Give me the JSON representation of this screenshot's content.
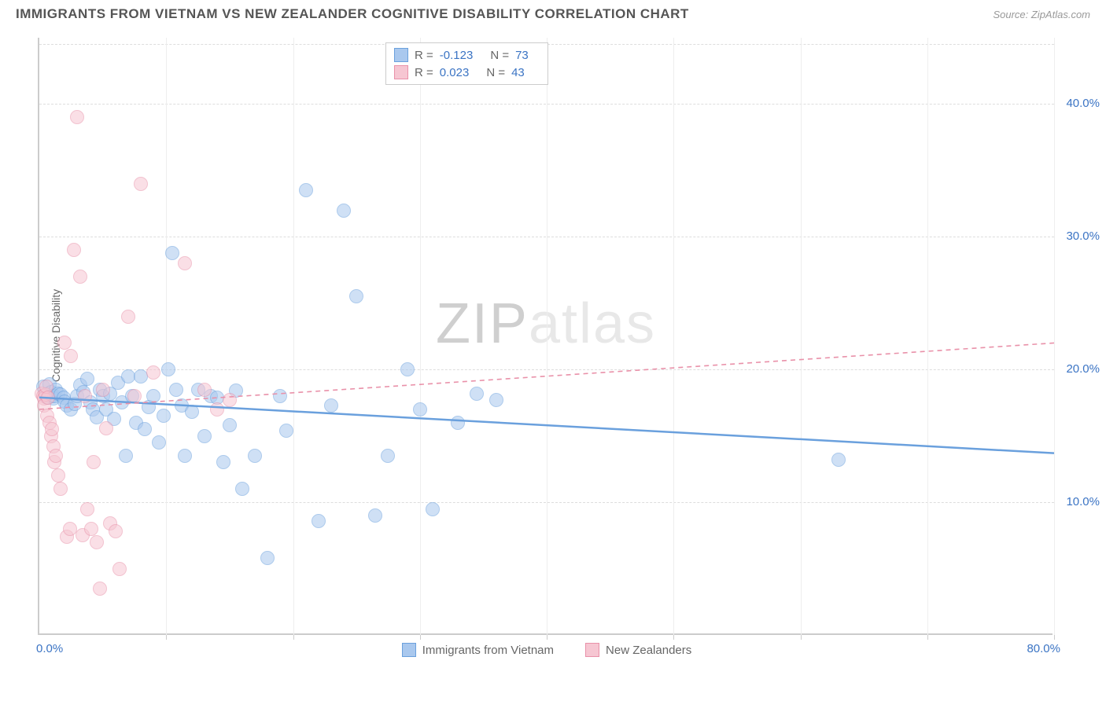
{
  "header": {
    "title": "IMMIGRANTS FROM VIETNAM VS NEW ZEALANDER COGNITIVE DISABILITY CORRELATION CHART",
    "source": "Source: ZipAtlas.com"
  },
  "chart": {
    "type": "scatter",
    "ylabel": "Cognitive Disability",
    "background_color": "#ffffff",
    "grid_color": "#dddddd",
    "axis_color": "#cccccc",
    "tick_label_color": "#3b74c4",
    "axis_label_color": "#666666",
    "xlim": [
      0,
      80
    ],
    "ylim": [
      0,
      45
    ],
    "ytick_step": 10,
    "xtick_step": 10,
    "yticks": [
      {
        "value": 10,
        "label": "10.0%"
      },
      {
        "value": 20,
        "label": "20.0%"
      },
      {
        "value": 30,
        "label": "30.0%"
      },
      {
        "value": 40,
        "label": "40.0%"
      }
    ],
    "xticks_left": {
      "value": 0,
      "label": "0.0%"
    },
    "xticks_right": {
      "value": 80,
      "label": "80.0%"
    },
    "xtick_positions": [
      10,
      20,
      30,
      40,
      50,
      60,
      70,
      80
    ],
    "point_radius": 9,
    "point_opacity": 0.55,
    "watermark": {
      "part1": "ZIP",
      "part2": "atlas"
    },
    "series": [
      {
        "name": "Immigrants from Vietnam",
        "color_fill": "#a9c8ee",
        "color_stroke": "#6aa0dd",
        "R": "-0.123",
        "N": "73",
        "points": [
          [
            0.3,
            18.7
          ],
          [
            0.5,
            18.0
          ],
          [
            0.6,
            17.9
          ],
          [
            0.7,
            18.2
          ],
          [
            0.8,
            18.9
          ],
          [
            0.9,
            18.3
          ],
          [
            1.0,
            18.0
          ],
          [
            1.1,
            17.8
          ],
          [
            1.2,
            18.0
          ],
          [
            1.3,
            18.5
          ],
          [
            1.5,
            18.2
          ],
          [
            1.7,
            18.1
          ],
          [
            1.9,
            17.9
          ],
          [
            2.0,
            17.6
          ],
          [
            2.2,
            17.3
          ],
          [
            2.5,
            17.0
          ],
          [
            2.8,
            17.4
          ],
          [
            3.0,
            18.0
          ],
          [
            3.2,
            18.8
          ],
          [
            3.5,
            18.3
          ],
          [
            3.8,
            19.3
          ],
          [
            4.0,
            17.5
          ],
          [
            4.2,
            17.0
          ],
          [
            4.5,
            16.4
          ],
          [
            4.8,
            18.5
          ],
          [
            5.0,
            18.0
          ],
          [
            5.3,
            17.0
          ],
          [
            5.6,
            18.2
          ],
          [
            5.9,
            16.3
          ],
          [
            6.2,
            19.0
          ],
          [
            6.5,
            17.5
          ],
          [
            6.8,
            13.5
          ],
          [
            7.0,
            19.5
          ],
          [
            7.3,
            18.0
          ],
          [
            7.6,
            16.0
          ],
          [
            8.0,
            19.5
          ],
          [
            8.3,
            15.5
          ],
          [
            8.6,
            17.2
          ],
          [
            9.0,
            18.0
          ],
          [
            9.4,
            14.5
          ],
          [
            9.8,
            16.5
          ],
          [
            10.2,
            20.0
          ],
          [
            10.5,
            28.8
          ],
          [
            10.8,
            18.5
          ],
          [
            11.2,
            17.3
          ],
          [
            11.5,
            13.5
          ],
          [
            12.0,
            16.8
          ],
          [
            12.5,
            18.5
          ],
          [
            13.0,
            15.0
          ],
          [
            13.5,
            18.0
          ],
          [
            14.0,
            17.9
          ],
          [
            14.5,
            13.0
          ],
          [
            15.0,
            15.8
          ],
          [
            15.5,
            18.4
          ],
          [
            16.0,
            11.0
          ],
          [
            17.0,
            13.5
          ],
          [
            18.0,
            5.8
          ],
          [
            19.0,
            18.0
          ],
          [
            19.5,
            15.4
          ],
          [
            21.0,
            33.5
          ],
          [
            22.0,
            8.6
          ],
          [
            23.0,
            17.3
          ],
          [
            24.0,
            32.0
          ],
          [
            25.0,
            25.5
          ],
          [
            26.5,
            9.0
          ],
          [
            27.5,
            13.5
          ],
          [
            29.0,
            20.0
          ],
          [
            30.0,
            17.0
          ],
          [
            31.0,
            9.5
          ],
          [
            33.0,
            16.0
          ],
          [
            34.5,
            18.2
          ],
          [
            36.0,
            17.7
          ],
          [
            63.0,
            13.2
          ]
        ],
        "trend": {
          "y_start": 17.9,
          "y_end": 13.7,
          "solid": true
        }
      },
      {
        "name": "New Zealanders",
        "color_fill": "#f6c6d2",
        "color_stroke": "#e991a9",
        "R": "0.023",
        "N": "43",
        "points": [
          [
            0.2,
            18.2
          ],
          [
            0.3,
            18.0
          ],
          [
            0.35,
            17.8
          ],
          [
            0.4,
            17.3
          ],
          [
            0.5,
            18.1
          ],
          [
            0.55,
            18.7
          ],
          [
            0.6,
            16.5
          ],
          [
            0.7,
            17.9
          ],
          [
            0.8,
            16.0
          ],
          [
            0.9,
            15.0
          ],
          [
            1.0,
            15.5
          ],
          [
            1.1,
            14.2
          ],
          [
            1.2,
            13.0
          ],
          [
            1.3,
            13.5
          ],
          [
            1.5,
            12.0
          ],
          [
            1.7,
            11.0
          ],
          [
            2.0,
            22.0
          ],
          [
            2.2,
            7.4
          ],
          [
            2.4,
            8.0
          ],
          [
            2.5,
            21.0
          ],
          [
            2.7,
            29.0
          ],
          [
            3.0,
            39.0
          ],
          [
            3.2,
            27.0
          ],
          [
            3.4,
            7.5
          ],
          [
            3.6,
            18.0
          ],
          [
            3.8,
            9.5
          ],
          [
            4.1,
            8.0
          ],
          [
            4.3,
            13.0
          ],
          [
            4.5,
            7.0
          ],
          [
            4.8,
            3.5
          ],
          [
            5.0,
            18.5
          ],
          [
            5.3,
            15.6
          ],
          [
            5.6,
            8.4
          ],
          [
            6.0,
            7.8
          ],
          [
            6.3,
            5.0
          ],
          [
            7.0,
            24.0
          ],
          [
            7.5,
            18.0
          ],
          [
            8.0,
            34.0
          ],
          [
            9.0,
            19.8
          ],
          [
            11.5,
            28.0
          ],
          [
            13.0,
            18.5
          ],
          [
            14.0,
            17.0
          ],
          [
            15.0,
            17.7
          ]
        ],
        "trend": {
          "y_start": 17.0,
          "y_end": 22.0,
          "solid": false
        }
      }
    ],
    "legend_top": {
      "R_label": "R =",
      "N_label": "N ="
    }
  }
}
